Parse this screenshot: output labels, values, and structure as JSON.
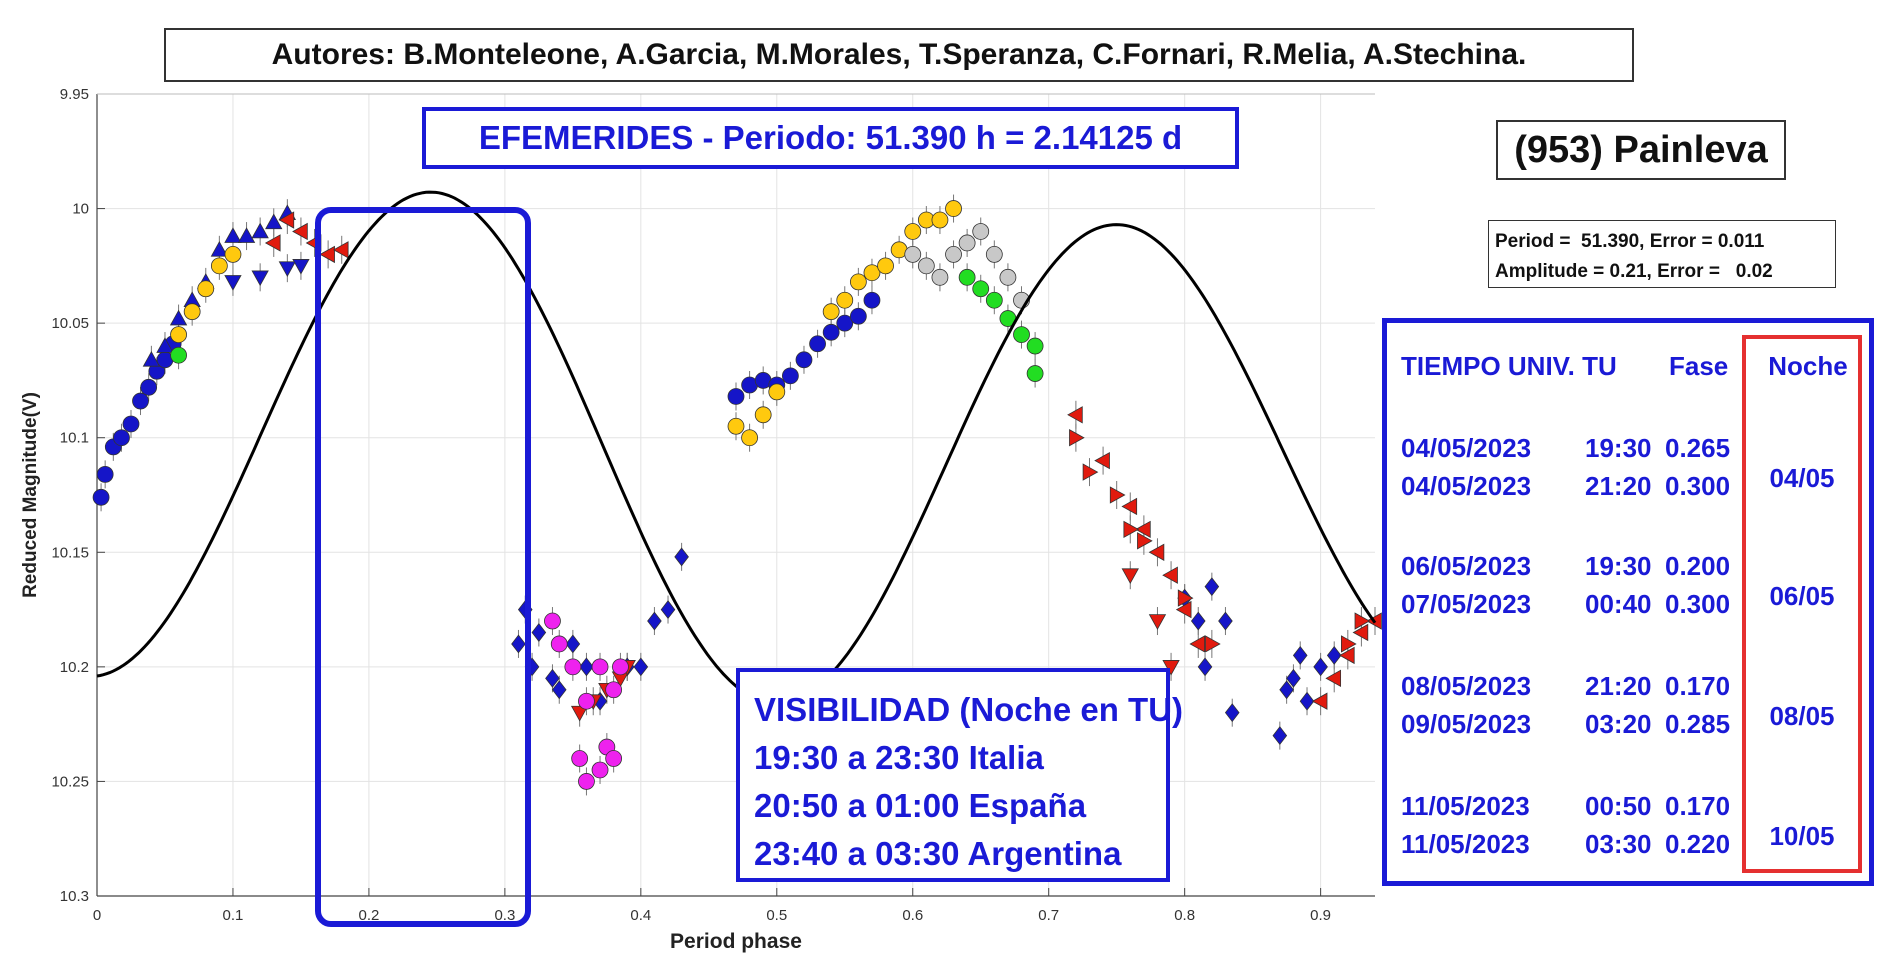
{
  "authors": "Autores: B.Monteleone, A.Garcia, M.Morales, T.Speranza, C.Fornari, R.Melia, A.Stechina.",
  "ephemerides": "EFEMERIDES - Periodo: 51.390 h = 2.14125 d",
  "object_name": "(953) Painleva",
  "fit": {
    "line1": "Period =  51.390, Error = 0.011",
    "line2": "Amplitude = 0.21, Error =   0.02"
  },
  "schedule": {
    "col_time": "TIEMPO UNIV. TU",
    "col_phase": "Fase",
    "col_night": "Noche",
    "rows": [
      {
        "date": "04/05/2023",
        "time": "19:30",
        "phase": "0.265"
      },
      {
        "date": "04/05/2023",
        "time": "21:20",
        "phase": "0.300"
      },
      {
        "date": "06/05/2023",
        "time": "19:30",
        "phase": "0.200"
      },
      {
        "date": "07/05/2023",
        "time": "00:40",
        "phase": "0.300"
      },
      {
        "date": "08/05/2023",
        "time": "21:20",
        "phase": "0.170"
      },
      {
        "date": "09/05/2023",
        "time": "03:20",
        "phase": "0.285"
      },
      {
        "date": "11/05/2023",
        "time": "00:50",
        "phase": "0.170"
      },
      {
        "date": "11/05/2023",
        "time": "03:30",
        "phase": "0.220"
      }
    ],
    "nights": [
      "04/05",
      "06/05",
      "08/05",
      "10/05"
    ]
  },
  "visibility": {
    "title": "VISIBILIDAD (Noche en TU)",
    "lines": [
      "19:30 a 23:30 Italia",
      "20:50 a 01:00 España",
      "23:40 a 03:30 Argentina"
    ]
  },
  "colors": {
    "accent_blue": "#1a1ad6",
    "night_red": "#e53030",
    "fit_curve": "#000000"
  },
  "chart_data": {
    "type": "scatter",
    "xlabel": "Period phase",
    "ylabel": "Reduced Magnitude(V)",
    "xlim": [
      0,
      0.94
    ],
    "ylim": [
      10.3,
      9.95
    ],
    "y_inverted": true,
    "grid": true,
    "xticks": [
      "0",
      "0.1",
      "0.2",
      "0.3",
      "0.4",
      "0.5",
      "0.6",
      "0.7",
      "0.8",
      "0.9"
    ],
    "yticks": [
      "9.95",
      "10",
      "10.05",
      "10.1",
      "10.15",
      "10.2",
      "10.25",
      "10.3"
    ],
    "fit_curve": {
      "mean": 10.105,
      "harmonics": [
        {
          "n": 1,
          "a": -0.006,
          "b": -0.007
        },
        {
          "n": 2,
          "a": 0.105,
          "b": -0.0032
        }
      ]
    },
    "highlight_window": {
      "phase_from": 0.165,
      "phase_to": 0.31
    },
    "series": [
      {
        "color": "#1515c8",
        "marker": "circle",
        "points": [
          [
            0.003,
            10.126
          ],
          [
            0.006,
            10.116
          ],
          [
            0.012,
            10.104
          ],
          [
            0.018,
            10.1
          ],
          [
            0.025,
            10.094
          ],
          [
            0.032,
            10.084
          ],
          [
            0.038,
            10.078
          ],
          [
            0.044,
            10.071
          ],
          [
            0.05,
            10.066
          ],
          [
            0.056,
            10.059
          ],
          [
            0.47,
            10.082
          ],
          [
            0.48,
            10.077
          ],
          [
            0.49,
            10.075
          ],
          [
            0.5,
            10.077
          ],
          [
            0.51,
            10.073
          ],
          [
            0.52,
            10.066
          ],
          [
            0.53,
            10.059
          ],
          [
            0.54,
            10.054
          ],
          [
            0.55,
            10.05
          ],
          [
            0.56,
            10.047
          ],
          [
            0.57,
            10.04
          ]
        ]
      },
      {
        "color": "#1515c8",
        "marker": "triangle-up",
        "points": [
          [
            0.04,
            10.066
          ],
          [
            0.05,
            10.06
          ],
          [
            0.06,
            10.048
          ],
          [
            0.07,
            10.04
          ],
          [
            0.08,
            10.032
          ],
          [
            0.09,
            10.018
          ],
          [
            0.1,
            10.012
          ],
          [
            0.11,
            10.012
          ],
          [
            0.12,
            10.01
          ],
          [
            0.13,
            10.006
          ],
          [
            0.14,
            10.002
          ]
        ]
      },
      {
        "color": "#1515c8",
        "marker": "triangle-down",
        "points": [
          [
            0.1,
            10.032
          ],
          [
            0.12,
            10.03
          ],
          [
            0.14,
            10.026
          ],
          [
            0.15,
            10.025
          ]
        ]
      },
      {
        "color": "#1515c8",
        "marker": "diamond",
        "points": [
          [
            0.31,
            10.19
          ],
          [
            0.315,
            10.175
          ],
          [
            0.32,
            10.2
          ],
          [
            0.325,
            10.185
          ],
          [
            0.335,
            10.205
          ],
          [
            0.34,
            10.21
          ],
          [
            0.35,
            10.19
          ],
          [
            0.36,
            10.2
          ],
          [
            0.37,
            10.215
          ],
          [
            0.39,
            10.2
          ],
          [
            0.4,
            10.2
          ],
          [
            0.41,
            10.18
          ],
          [
            0.42,
            10.175
          ],
          [
            0.43,
            10.152
          ],
          [
            0.8,
            10.17
          ],
          [
            0.81,
            10.18
          ],
          [
            0.815,
            10.2
          ],
          [
            0.82,
            10.165
          ],
          [
            0.83,
            10.18
          ],
          [
            0.835,
            10.22
          ],
          [
            0.87,
            10.23
          ],
          [
            0.875,
            10.21
          ],
          [
            0.88,
            10.205
          ],
          [
            0.885,
            10.195
          ],
          [
            0.89,
            10.215
          ],
          [
            0.9,
            10.2
          ],
          [
            0.91,
            10.195
          ]
        ]
      },
      {
        "color": "#e11a0e",
        "marker": "triangle-left",
        "points": [
          [
            0.13,
            10.015
          ],
          [
            0.14,
            10.005
          ],
          [
            0.15,
            10.01
          ],
          [
            0.16,
            10.015
          ],
          [
            0.17,
            10.02
          ],
          [
            0.18,
            10.018
          ],
          [
            0.72,
            10.09
          ],
          [
            0.74,
            10.11
          ],
          [
            0.76,
            10.13
          ],
          [
            0.77,
            10.14
          ],
          [
            0.78,
            10.15
          ],
          [
            0.79,
            10.16
          ],
          [
            0.8,
            10.175
          ],
          [
            0.81,
            10.19
          ],
          [
            0.9,
            10.215
          ],
          [
            0.91,
            10.205
          ],
          [
            0.92,
            10.195
          ],
          [
            0.93,
            10.185
          ],
          [
            0.94,
            10.18
          ]
        ]
      },
      {
        "color": "#e11a0e",
        "marker": "triangle-right",
        "points": [
          [
            0.72,
            10.1
          ],
          [
            0.73,
            10.115
          ],
          [
            0.75,
            10.125
          ],
          [
            0.76,
            10.14
          ],
          [
            0.77,
            10.145
          ],
          [
            0.8,
            10.17
          ],
          [
            0.82,
            10.19
          ],
          [
            0.92,
            10.19
          ],
          [
            0.93,
            10.18
          ]
        ]
      },
      {
        "color": "#e11a0e",
        "marker": "triangle-down",
        "points": [
          [
            0.355,
            10.22
          ],
          [
            0.365,
            10.215
          ],
          [
            0.375,
            10.21
          ],
          [
            0.385,
            10.205
          ],
          [
            0.39,
            10.2
          ],
          [
            0.76,
            10.16
          ],
          [
            0.78,
            10.18
          ],
          [
            0.79,
            10.2
          ]
        ]
      },
      {
        "color": "#ffc90e",
        "marker": "circle",
        "points": [
          [
            0.06,
            10.055
          ],
          [
            0.07,
            10.045
          ],
          [
            0.08,
            10.035
          ],
          [
            0.09,
            10.025
          ],
          [
            0.1,
            10.02
          ],
          [
            0.47,
            10.095
          ],
          [
            0.48,
            10.1
          ],
          [
            0.49,
            10.09
          ],
          [
            0.5,
            10.08
          ],
          [
            0.54,
            10.045
          ],
          [
            0.55,
            10.04
          ],
          [
            0.56,
            10.032
          ],
          [
            0.57,
            10.028
          ],
          [
            0.58,
            10.025
          ],
          [
            0.59,
            10.018
          ],
          [
            0.6,
            10.01
          ],
          [
            0.61,
            10.005
          ],
          [
            0.62,
            10.005
          ],
          [
            0.63,
            10.0
          ]
        ]
      },
      {
        "color": "#c8c8c8",
        "marker": "circle",
        "points": [
          [
            0.6,
            10.02
          ],
          [
            0.61,
            10.025
          ],
          [
            0.62,
            10.03
          ],
          [
            0.63,
            10.02
          ],
          [
            0.64,
            10.015
          ],
          [
            0.65,
            10.01
          ],
          [
            0.66,
            10.02
          ],
          [
            0.67,
            10.03
          ],
          [
            0.68,
            10.04
          ]
        ]
      },
      {
        "color": "#22dd22",
        "marker": "circle",
        "points": [
          [
            0.64,
            10.03
          ],
          [
            0.65,
            10.035
          ],
          [
            0.66,
            10.04
          ],
          [
            0.67,
            10.048
          ],
          [
            0.68,
            10.055
          ],
          [
            0.69,
            10.06
          ],
          [
            0.69,
            10.072
          ],
          [
            0.06,
            10.064
          ]
        ]
      },
      {
        "color": "#ee22ee",
        "marker": "circle",
        "points": [
          [
            0.335,
            10.18
          ],
          [
            0.34,
            10.19
          ],
          [
            0.35,
            10.2
          ],
          [
            0.36,
            10.215
          ],
          [
            0.37,
            10.2
          ],
          [
            0.38,
            10.21
          ],
          [
            0.385,
            10.2
          ],
          [
            0.355,
            10.24
          ],
          [
            0.36,
            10.25
          ],
          [
            0.37,
            10.245
          ],
          [
            0.375,
            10.235
          ],
          [
            0.38,
            10.24
          ]
        ]
      }
    ]
  }
}
